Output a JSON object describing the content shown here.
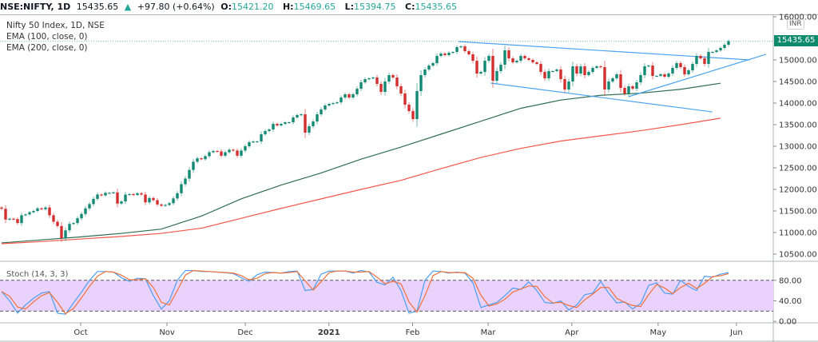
{
  "header": {
    "symbol": "NSE:NIFTY, 1D",
    "last": "15435.65",
    "change_arrow": "▲",
    "change": "+97.80 (+0.64%)",
    "o_label": "O:",
    "o": "15421.20",
    "h_label": "H:",
    "h": "15469.65",
    "l_label": "L:",
    "l": "15394.75",
    "c_label": "C:",
    "c": "15435.65"
  },
  "legend": {
    "title": "Nifty 50 Index, 1D, NSE",
    "ema100": "EMA (100, close, 0)",
    "ema200": "EMA (200, close, 0)",
    "stoch": "Stoch (14, 3, 3)"
  },
  "price_axis": {
    "currency": "INR",
    "last_price_label": "15435.65",
    "ticks": [
      "16000.00",
      "15000.00",
      "14500.00",
      "14000.00",
      "13500.00",
      "13000.00",
      "12500.00",
      "12000.00",
      "11500.00",
      "11000.00",
      "10500.00"
    ]
  },
  "stoch_axis": {
    "ticks": [
      "80.00",
      "40.00",
      "0.00"
    ]
  },
  "colors": {
    "up": "#138a74",
    "down": "#d32f2f",
    "ema100": "#2f6e4f",
    "ema200": "#f4574a",
    "trendline": "#4aa3f0",
    "stoch_k": "#4a9ff5",
    "stoch_d": "#f2703a",
    "stoch_band": "#e9d3fc",
    "last_price_bg": "#0e8a6d"
  },
  "chart_data": [
    {
      "type": "candlestick",
      "title": "Nifty 50 Index, 1D, NSE",
      "x_axis": {
        "ticks": [
          {
            "label": "Oct",
            "date": "2020-10-01"
          },
          {
            "label": "Nov",
            "date": "2020-11-02"
          },
          {
            "label": "Dec",
            "date": "2020-12-01"
          },
          {
            "label": "2021",
            "date": "2021-01-01"
          },
          {
            "label": "Feb",
            "date": "2021-02-01"
          },
          {
            "label": "Mar",
            "date": "2021-03-01"
          },
          {
            "label": "Apr",
            "date": "2021-04-01"
          },
          {
            "label": "May",
            "date": "2021-05-03"
          },
          {
            "label": "Jun",
            "date": "2021-06-01"
          }
        ]
      },
      "ylim": [
        10300,
        16000
      ],
      "closes": [
        11550,
        11300,
        11320,
        11310,
        11220,
        11400,
        11420,
        11470,
        11500,
        11560,
        11540,
        11580,
        11400,
        11250,
        11150,
        10870,
        11050,
        11200,
        11220,
        11330,
        11430,
        11560,
        11660,
        11780,
        11880,
        11860,
        11920,
        11920,
        11930,
        11670,
        11720,
        11880,
        11890,
        11870,
        11910,
        11880,
        11700,
        11800,
        11750,
        11650,
        11620,
        11640,
        11680,
        11790,
        11910,
        12120,
        12250,
        12450,
        12640,
        12720,
        12700,
        12770,
        12860,
        12890,
        12880,
        12780,
        12860,
        12920,
        12900,
        12780,
        12900,
        13000,
        13093,
        13111,
        13111,
        13278,
        13352,
        13389,
        13518,
        13482,
        13518,
        13555,
        13555,
        13667,
        13722,
        13740,
        13315,
        13463,
        13574,
        13740,
        13852,
        13944,
        13981,
        14000,
        14018,
        14130,
        14204,
        14130,
        14204,
        14333,
        14481,
        14555,
        14574,
        14593,
        14444,
        14259,
        14500,
        14648,
        14593,
        14389,
        14222,
        13963,
        13815,
        13630,
        14278,
        14648,
        14778,
        14870,
        14926,
        15093,
        15148,
        15111,
        15167,
        15185,
        15296,
        15315,
        15204,
        15130,
        14981,
        14685,
        14722,
        14981,
        15093,
        14518,
        14741,
        14889,
        15222,
        15037,
        14944,
        14981,
        15093,
        15037,
        15000,
        14944,
        14907,
        14722,
        14574,
        14741,
        14741,
        14778,
        14555,
        14315,
        14500,
        14852,
        14685,
        14852,
        14648,
        14722,
        14815,
        14852,
        14833,
        14315,
        14500,
        14574,
        14667,
        14352,
        14222,
        14389,
        14333,
        14481,
        14648,
        14852,
        14870,
        14630,
        14630,
        14667,
        14611,
        14685,
        14815,
        14926,
        14833,
        14667,
        14759,
        14907,
        15093,
        15037,
        14907,
        15185,
        15185,
        15222,
        15278,
        15352,
        15435.65
      ],
      "series": [
        {
          "name": "EMA (100, close, 0)",
          "sample_every_bars": 10,
          "values": [
            10760,
            10830,
            10900,
            10980,
            11080,
            11380,
            11780,
            12100,
            12380,
            12700,
            12980,
            13280,
            13580,
            13880,
            14070,
            14180,
            14230,
            14320,
            14460
          ]
        },
        {
          "name": "EMA (200, close, 0)",
          "sample_every_bars": 10,
          "values": [
            10740,
            10790,
            10850,
            10910,
            10980,
            11100,
            11330,
            11560,
            11780,
            12000,
            12210,
            12480,
            12740,
            12950,
            13120,
            13240,
            13360,
            13500,
            13650
          ]
        }
      ],
      "trendlines": [
        {
          "from": {
            "date": "2021-02-18",
            "price": 15426
          },
          "to": {
            "date": "2021-06-06",
            "price": 15000
          }
        },
        {
          "from": {
            "date": "2021-03-02",
            "price": 14463
          },
          "to": {
            "date": "2021-05-23",
            "price": 13796
          }
        },
        {
          "from": {
            "date": "2021-04-22",
            "price": 14148
          },
          "to": {
            "date": "2021-06-12",
            "price": 15130
          }
        }
      ],
      "last_price": 15435.65
    },
    {
      "type": "line",
      "title": "Stoch (14, 3, 3)",
      "ylim": [
        0,
        100
      ],
      "bands": [
        20,
        80
      ],
      "sample_every_bars": 2,
      "series": [
        {
          "name": "%K",
          "values": [
            58,
            40,
            16,
            32,
            45,
            55,
            58,
            16,
            14,
            36,
            57,
            80,
            97,
            97,
            96,
            85,
            78,
            84,
            83,
            50,
            24,
            40,
            80,
            99,
            99,
            97,
            97,
            96,
            95,
            93,
            85,
            78,
            91,
            96,
            95,
            94,
            97,
            98,
            60,
            62,
            92,
            98,
            98,
            98,
            94,
            99,
            96,
            76,
            71,
            86,
            60,
            16,
            20,
            80,
            98,
            97,
            94,
            96,
            94,
            75,
            27,
            32,
            37,
            50,
            65,
            62,
            77,
            60,
            37,
            35,
            40,
            22,
            32,
            52,
            55,
            78,
            55,
            36,
            38,
            24,
            35,
            70,
            75,
            55,
            53,
            80,
            68,
            60,
            88,
            86,
            92,
            95
          ]
        },
        {
          "name": "%D",
          "values": [
            58,
            49,
            28,
            24,
            38,
            50,
            56,
            37,
            15,
            25,
            46,
            68,
            88,
            97,
            96,
            90,
            81,
            81,
            83,
            66,
            37,
            32,
            60,
            90,
            99,
            98,
            97,
            96,
            95,
            94,
            89,
            81,
            84,
            93,
            95,
            94,
            95,
            97,
            79,
            61,
            77,
            95,
            98,
            98,
            96,
            96,
            97,
            86,
            73,
            78,
            73,
            38,
            18,
            50,
            89,
            97,
            95,
            95,
            95,
            84,
            51,
            30,
            34,
            43,
            57,
            63,
            69,
            68,
            48,
            36,
            37,
            31,
            27,
            42,
            53,
            66,
            66,
            45,
            37,
            31,
            29,
            52,
            72,
            65,
            54,
            66,
            74,
            64,
            74,
            87,
            89,
            93
          ]
        }
      ]
    }
  ]
}
